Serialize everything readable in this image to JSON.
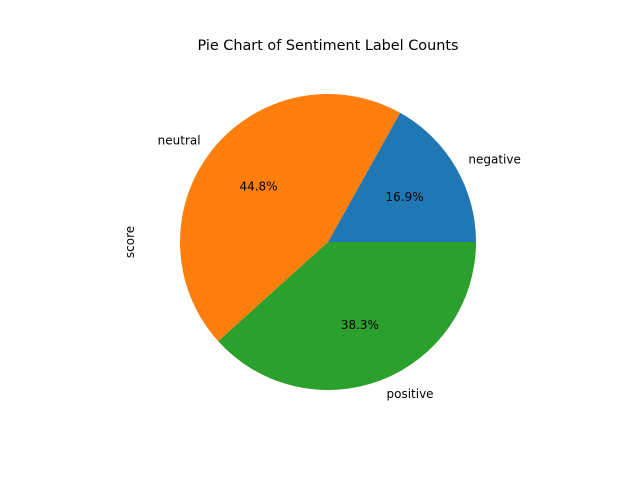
{
  "chart_data": {
    "type": "pie",
    "title": "Pie Chart of Sentiment Label Counts",
    "ylabel": "score",
    "xlabel": "",
    "autopct_format": "%.1f%%",
    "slices": [
      {
        "label": "negative",
        "value": 16.9,
        "pct_text": "16.9%",
        "color": "#1f77b4"
      },
      {
        "label": "neutral",
        "value": 44.8,
        "pct_text": "44.8%",
        "color": "#ff7f0e"
      },
      {
        "label": "positive",
        "value": 38.3,
        "pct_text": "38.3%",
        "color": "#2ca02c"
      }
    ],
    "start_angle_deg": 0,
    "direction": "counterclockwise",
    "legend": "none",
    "grid": false
  }
}
